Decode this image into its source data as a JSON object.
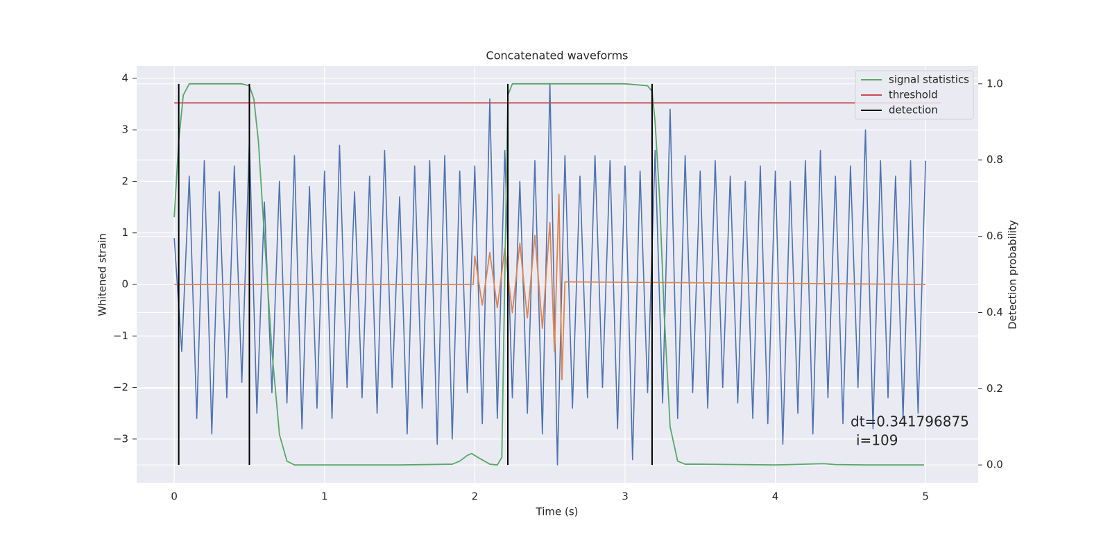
{
  "chart_data": {
    "type": "line",
    "title": "Concatenated waveforms",
    "xlabel": "Time (s)",
    "ylabel": "Whitened strain",
    "y2label": "Detection probability",
    "xlim": [
      -0.25,
      5.35
    ],
    "ylim": [
      -3.85,
      4.24
    ],
    "y2lim": [
      -0.047,
      1.047
    ],
    "xticks": [
      0,
      1,
      2,
      3,
      4,
      5
    ],
    "yticks": [
      {
        "value": -3,
        "label": "−3"
      },
      {
        "value": -2,
        "label": "−2"
      },
      {
        "value": -1,
        "label": "−1"
      },
      0,
      1,
      2,
      3,
      4
    ],
    "y2ticks": [
      {
        "value": 0,
        "label": "0.0"
      },
      0.2,
      0.4,
      0.6,
      0.8,
      {
        "value": 1,
        "label": "1.0"
      }
    ],
    "grid": true,
    "legend": "upper right",
    "series": [
      {
        "color": "#4c72b0",
        "x": [
          0,
          0.05,
          0.1,
          0.15,
          0.2,
          0.25,
          0.3,
          0.35,
          0.4,
          0.45,
          0.5,
          0.55,
          0.6,
          0.65,
          0.7,
          0.75,
          0.8,
          0.85,
          0.9,
          0.95,
          1,
          1.05,
          1.1,
          1.15,
          1.2,
          1.25,
          1.3,
          1.35,
          1.4,
          1.45,
          1.5,
          1.55,
          1.6,
          1.65,
          1.7,
          1.75,
          1.8,
          1.85,
          1.9,
          1.95,
          2,
          2.05,
          2.1,
          2.15,
          2.2,
          2.25,
          2.3,
          2.35,
          2.4,
          2.45,
          2.5,
          2.55,
          2.6,
          2.65,
          2.7,
          2.75,
          2.8,
          2.85,
          2.9,
          2.95,
          3,
          3.05,
          3.1,
          3.15,
          3.2,
          3.25,
          3.3,
          3.35,
          3.4,
          3.45,
          3.5,
          3.55,
          3.6,
          3.65,
          3.7,
          3.75,
          3.8,
          3.85,
          3.9,
          3.95,
          4,
          4.05,
          4.1,
          4.15,
          4.2,
          4.25,
          4.3,
          4.35,
          4.4,
          4.45,
          4.5,
          4.55,
          4.6,
          4.65,
          4.7,
          4.75,
          4.8,
          4.85,
          4.9,
          4.95,
          5
        ],
        "values": [
          0.9,
          -1.3,
          2.1,
          -2.6,
          2.4,
          -2.9,
          1.8,
          -2.2,
          2.3,
          -1.9,
          2.8,
          -2.5,
          1.6,
          -2.1,
          2.0,
          -2.3,
          2.5,
          -2.8,
          1.9,
          -2.4,
          2.2,
          -2.6,
          2.7,
          -2.0,
          1.8,
          -2.2,
          2.1,
          -2.5,
          2.6,
          -2.0,
          1.7,
          -2.9,
          2.3,
          -2.4,
          2.4,
          -3.1,
          2.5,
          -3.0,
          2.2,
          -2.1,
          2.3,
          -2.7,
          3.6,
          -2.6,
          2.6,
          -2.2,
          2.0,
          -2.5,
          2.4,
          -2.9,
          3.9,
          -3.5,
          2.5,
          -2.4,
          2.1,
          -2.2,
          2.5,
          -2.0,
          2.4,
          -2.8,
          2.3,
          -3.4,
          2.2,
          -2.1,
          2.6,
          -2.3,
          3.4,
          -2.6,
          2.5,
          -2.1,
          2.2,
          -2.4,
          2.4,
          -2.0,
          2.1,
          -2.3,
          2.0,
          -2.6,
          2.3,
          -2.7,
          2.2,
          -3.1,
          2.0,
          -2.5,
          2.4,
          -2.9,
          2.6,
          -2.2,
          2.1,
          -2.7,
          2.3,
          -2.0,
          3.0,
          -2.8,
          2.4,
          -2.2,
          2.1,
          -2.6,
          2.4,
          -2.5,
          2.4
        ]
      },
      {
        "color": "#dd8452",
        "x": [
          0,
          1.99,
          2.0,
          2.05,
          2.1,
          2.15,
          2.2,
          2.25,
          2.3,
          2.35,
          2.4,
          2.45,
          2.5,
          2.53,
          2.56,
          2.58,
          2.6,
          5
        ],
        "values": [
          0,
          0,
          0.55,
          -0.4,
          0.62,
          -0.45,
          0.7,
          -0.55,
          0.8,
          -0.65,
          0.95,
          -0.85,
          1.2,
          -1.3,
          1.75,
          -1.85,
          0.05,
          0
        ]
      },
      {
        "name": "signal statistics",
        "color": "#55a868",
        "axis": "y2",
        "x": [
          0,
          0.03,
          0.06,
          0.1,
          0.15,
          0.3,
          0.45,
          0.5,
          0.53,
          0.56,
          0.6,
          0.65,
          0.7,
          0.75,
          0.8,
          1.0,
          1.5,
          1.85,
          1.9,
          1.95,
          1.98,
          2.02,
          2.1,
          2.15,
          2.18,
          2.2,
          2.22,
          2.25,
          2.3,
          2.5,
          3.0,
          3.15,
          3.18,
          3.2,
          3.23,
          3.26,
          3.3,
          3.35,
          3.4,
          3.5,
          4.0,
          4.3,
          4.33,
          4.4,
          4.6,
          4.99
        ],
        "values": [
          0.65,
          0.85,
          0.97,
          1.0,
          1.0,
          1.0,
          1.0,
          0.995,
          0.96,
          0.85,
          0.6,
          0.3,
          0.08,
          0.01,
          0,
          0,
          0,
          0.002,
          0.01,
          0.025,
          0.03,
          0.02,
          0.002,
          0,
          0.02,
          0.5,
          0.97,
          1,
          1,
          1,
          1,
          0.995,
          0.98,
          0.9,
          0.7,
          0.4,
          0.1,
          0.01,
          0.002,
          0.002,
          0,
          0.003,
          0.003,
          0.001,
          0,
          0
        ]
      },
      {
        "name": "threshold",
        "color": "#c44e52",
        "axis": "y2",
        "x": [
          0,
          5.1
        ],
        "values": [
          0.95,
          0.95
        ]
      },
      {
        "name": "detection",
        "color": "#000000",
        "axis": "y2",
        "x": [
          0.03,
          0.5,
          2.22,
          3.18
        ],
        "y_range": [
          0,
          1
        ]
      }
    ],
    "annotation": [
      "dt=0.341796875",
      "i=109"
    ]
  }
}
